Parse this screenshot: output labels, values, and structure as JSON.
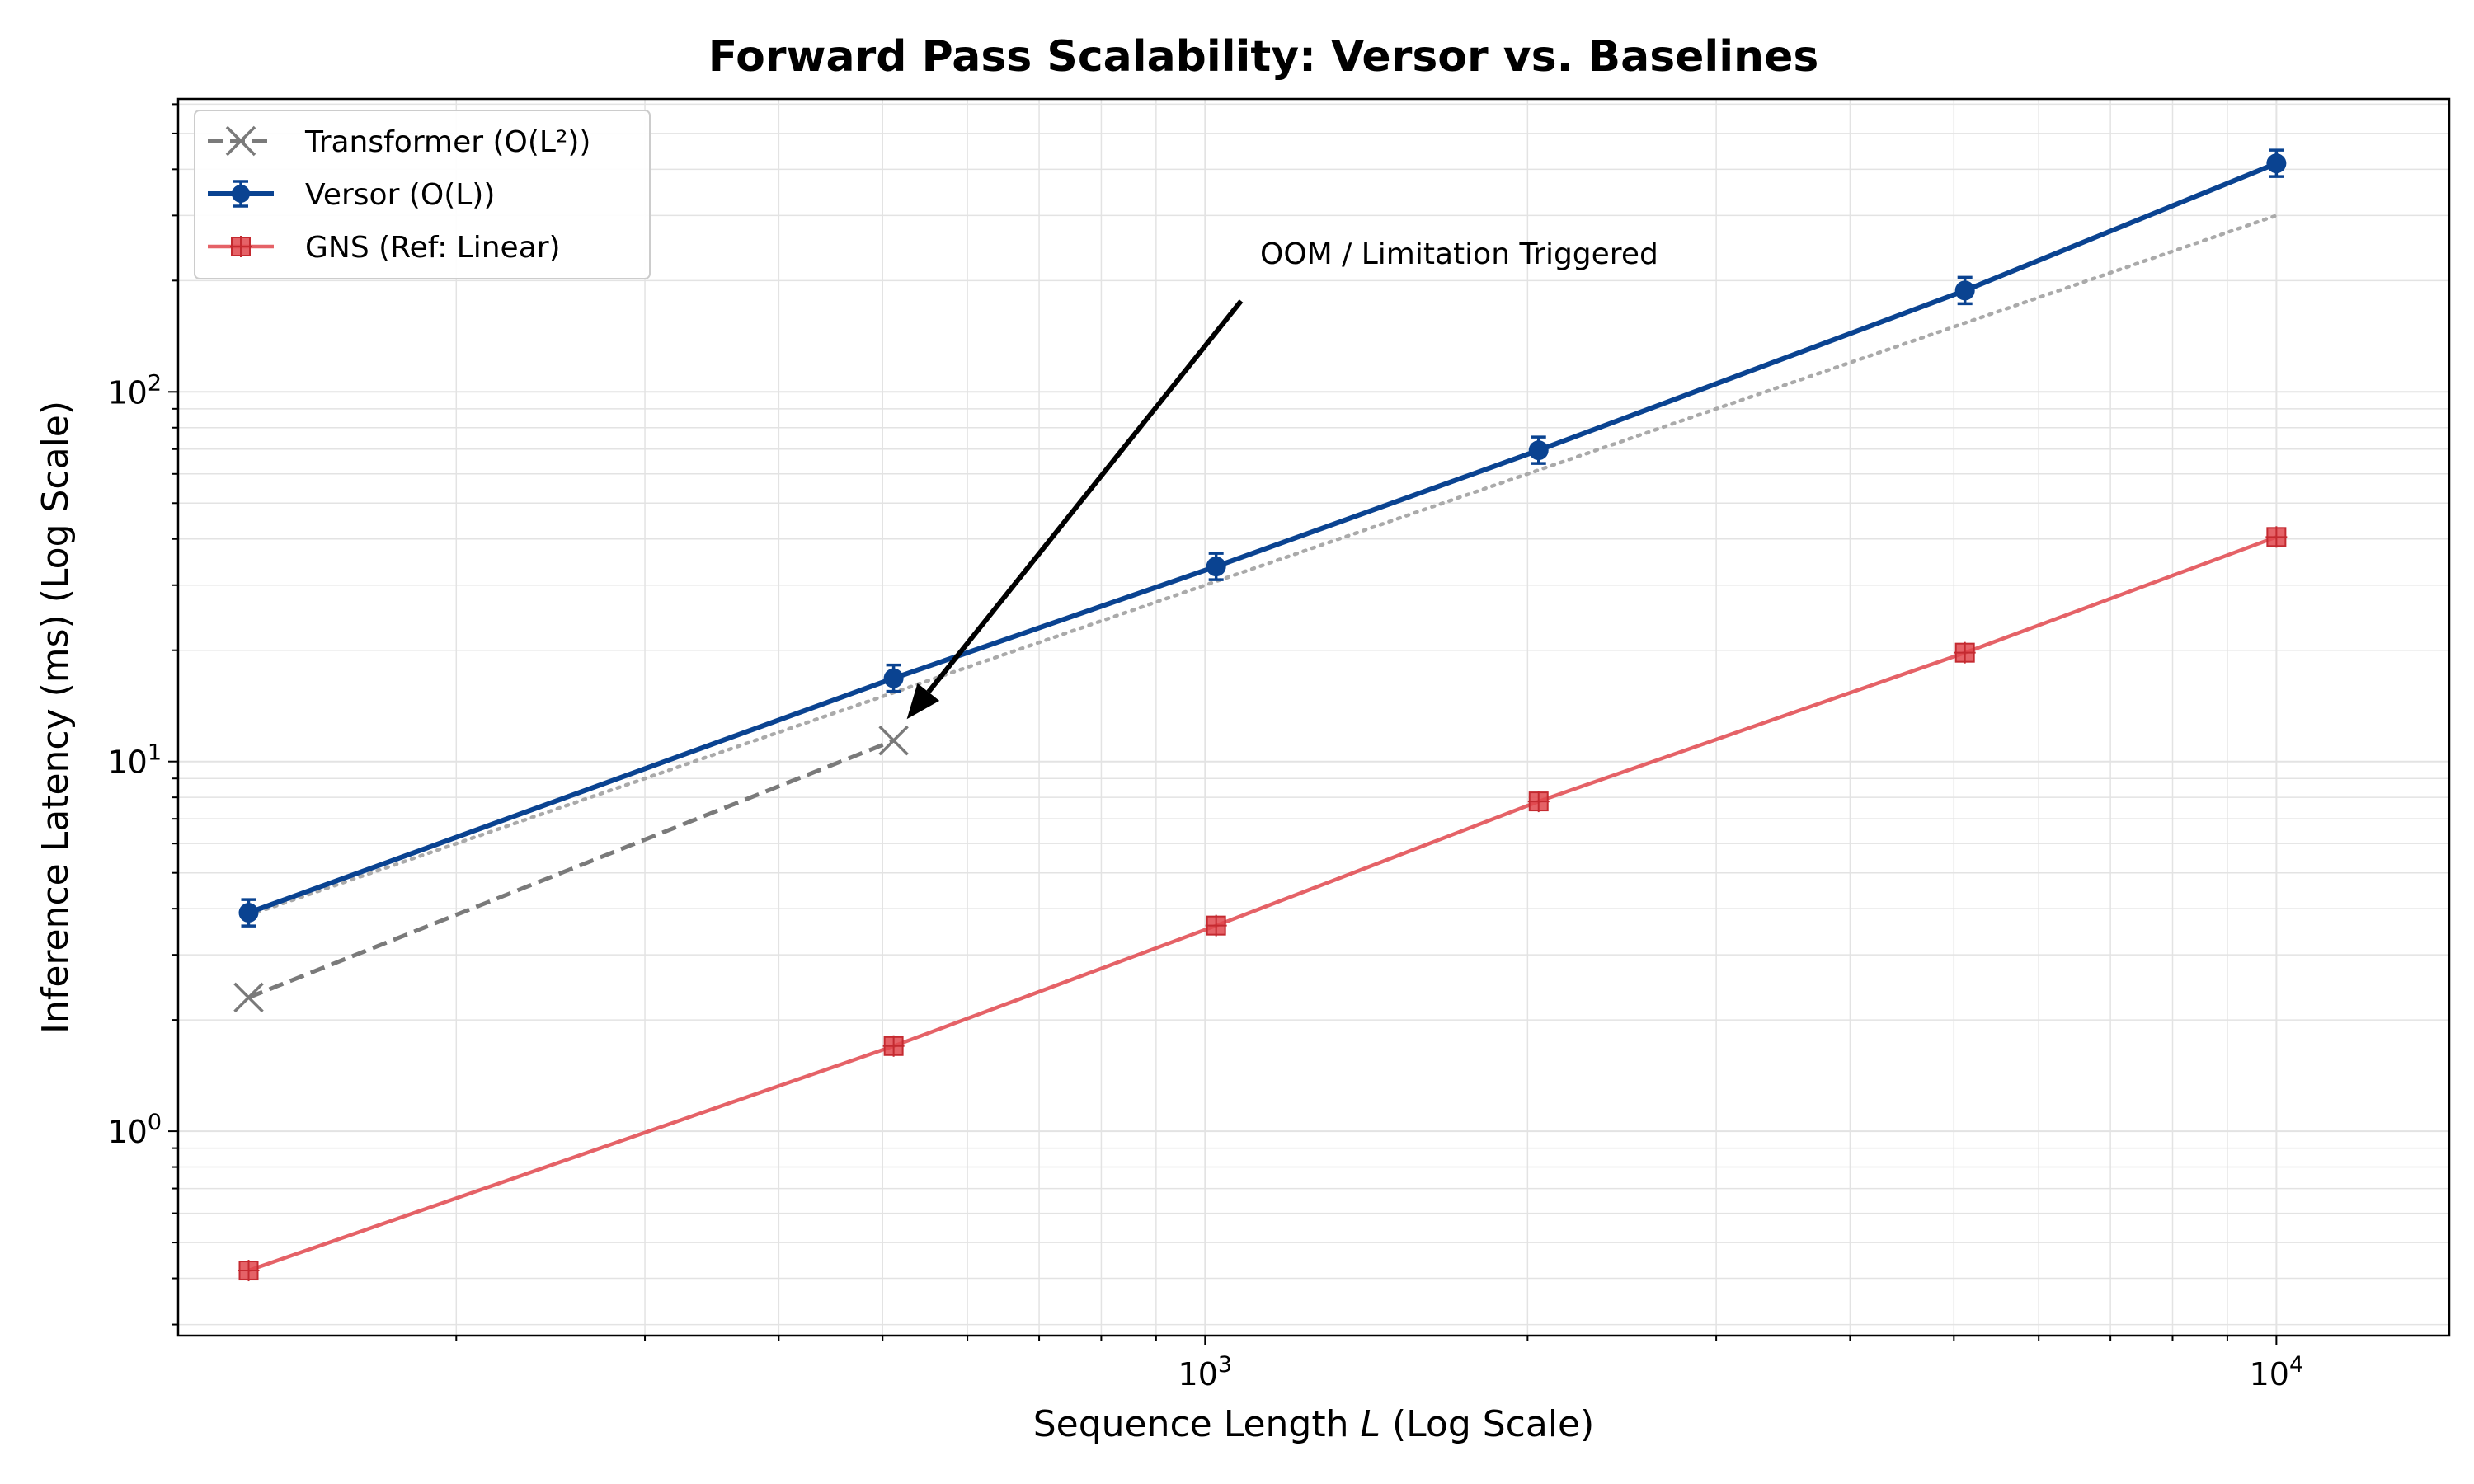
{
  "chart_data": {
    "type": "line",
    "title": "Forward Pass Scalability: Versor vs. Baselines",
    "xlabel": "Sequence Length L (Log Scale)",
    "xlabel_parts": {
      "prefix": "Sequence Length ",
      "var": "L",
      "suffix": " (Log Scale)"
    },
    "ylabel": "Inference Latency (ms) (Log Scale)",
    "xscale": "log",
    "yscale": "log",
    "xlim": [
      110,
      14500
    ],
    "ylim": [
      0.28,
      620
    ],
    "grid": true,
    "legend_position": "top-left",
    "x_ticks": [
      {
        "value": 1000,
        "base": "10",
        "exp": "3"
      },
      {
        "value": 10000,
        "base": "10",
        "exp": "4"
      }
    ],
    "y_ticks": [
      {
        "value": 1,
        "base": "10",
        "exp": "0"
      },
      {
        "value": 10,
        "base": "10",
        "exp": "1"
      },
      {
        "value": 100,
        "base": "10",
        "exp": "2"
      }
    ],
    "series": [
      {
        "name": "Transformer (O(L²))",
        "color": "#7a7a7a",
        "line_style": "dashed",
        "marker": "x",
        "x": [
          128,
          512
        ],
        "y": [
          2.3,
          11.4
        ]
      },
      {
        "name": "Versor (O(L))",
        "color": "#0a4391",
        "line_style": "solid",
        "marker": "circle",
        "error_bars": true,
        "x": [
          128,
          512,
          1024,
          2048,
          5120,
          10000
        ],
        "y": [
          3.9,
          16.8,
          33.7,
          69.5,
          188,
          415
        ]
      },
      {
        "name": "GNS (Ref: Linear)",
        "color": "#e0474c",
        "line_style": "solid",
        "marker": "square",
        "error_bars": true,
        "x": [
          128,
          512,
          1024,
          2048,
          5120,
          10000
        ],
        "y": [
          0.42,
          1.7,
          3.6,
          7.8,
          19.7,
          40.5
        ]
      }
    ],
    "reference_line": {
      "style": "dotted",
      "color": "#aaaaaa",
      "x": [
        128,
        10000
      ],
      "y": [
        3.84,
        300
      ]
    },
    "annotation": {
      "text": "OOM / Limitation Triggered",
      "arrow_to": {
        "x": 512,
        "y": 11.4
      }
    }
  }
}
